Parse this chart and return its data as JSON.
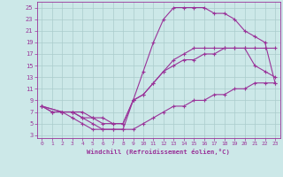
{
  "background_color": "#cce8e8",
  "line_color": "#993399",
  "grid_color": "#aacccc",
  "xlabel": "Windchill (Refroidissement éolien,°C)",
  "xlim": [
    -0.5,
    23.5
  ],
  "ylim": [
    2.5,
    26
  ],
  "xticks": [
    0,
    1,
    2,
    3,
    4,
    5,
    6,
    7,
    8,
    9,
    10,
    11,
    12,
    13,
    14,
    15,
    16,
    17,
    18,
    19,
    20,
    21,
    22,
    23
  ],
  "yticks": [
    3,
    5,
    7,
    9,
    11,
    13,
    15,
    17,
    19,
    21,
    23,
    25
  ],
  "line1_x": [
    0,
    1,
    2,
    3,
    4,
    5,
    6,
    7,
    8,
    9,
    10,
    11,
    12,
    13,
    14,
    15,
    16,
    17,
    18,
    19,
    20,
    21,
    22,
    23
  ],
  "line1_y": [
    8,
    7,
    7,
    6,
    5,
    4,
    4,
    4,
    4,
    4,
    5,
    6,
    7,
    8,
    8,
    9,
    9,
    10,
    10,
    11,
    11,
    12,
    12,
    12
  ],
  "line2_x": [
    0,
    2,
    3,
    4,
    5,
    6,
    7,
    8,
    9,
    10,
    11,
    12,
    13,
    14,
    15,
    16,
    17,
    18,
    19,
    20,
    21,
    22,
    23
  ],
  "line2_y": [
    8,
    7,
    7,
    6,
    6,
    5,
    5,
    5,
    9,
    10,
    12,
    14,
    15,
    16,
    16,
    17,
    17,
    18,
    18,
    18,
    15,
    14,
    13
  ],
  "line3_x": [
    0,
    1,
    2,
    3,
    4,
    5,
    6,
    7,
    8,
    9,
    10,
    11,
    12,
    13,
    14,
    15,
    16,
    17,
    18,
    19,
    20,
    21,
    22,
    23
  ],
  "line3_y": [
    8,
    7,
    7,
    7,
    6,
    5,
    4,
    4,
    4,
    9,
    14,
    19,
    23,
    25,
    25,
    25,
    25,
    24,
    24,
    23,
    21,
    20,
    19,
    12
  ],
  "line4_x": [
    0,
    2,
    3,
    4,
    5,
    6,
    7,
    8,
    9,
    10,
    11,
    12,
    13,
    14,
    15,
    16,
    17,
    18,
    19,
    20,
    21,
    22,
    23
  ],
  "line4_y": [
    8,
    7,
    7,
    7,
    6,
    6,
    5,
    5,
    9,
    10,
    12,
    14,
    16,
    17,
    18,
    18,
    18,
    18,
    18,
    18,
    18,
    18,
    18
  ]
}
